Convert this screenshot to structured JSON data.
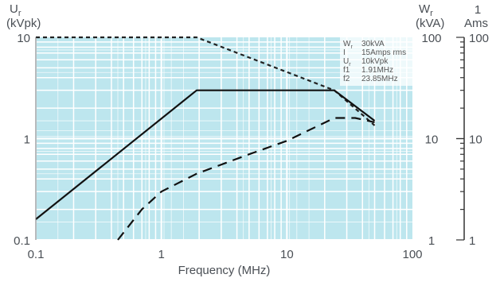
{
  "chart_data": {
    "type": "line",
    "xscale": "log",
    "yscale": "log",
    "xlim": [
      0.1,
      100
    ],
    "ylim": [
      0.1,
      10
    ],
    "grid": true,
    "background": "#bde6ee",
    "xlabel": "Frequency (MHz)",
    "axes": {
      "left": {
        "label_main": "U",
        "label_sub": "r",
        "label_unit": "(kVpk)",
        "ticks": [
          "0.1",
          "1",
          "10"
        ]
      },
      "right1": {
        "label_main": "W",
        "label_sub": "r",
        "label_unit": "(kVA)",
        "ticks": [
          "1",
          "10",
          "100"
        ]
      },
      "right2": {
        "label_main": "1",
        "label_unit": "Ams",
        "ticks": [
          "1",
          "10",
          "100"
        ]
      }
    },
    "x_ticks": [
      "0.1",
      "1",
      "10",
      "100"
    ],
    "legend": {
      "position": "top-right",
      "rows": [
        {
          "key": "W",
          "sub": "r",
          "value": "30kVA"
        },
        {
          "key": "I",
          "sub": "",
          "value": "15Amps rms"
        },
        {
          "key": "U",
          "sub": "r",
          "value": "10kVpk"
        },
        {
          "key": "f1",
          "sub": "",
          "value": "1.91MHz"
        },
        {
          "key": "f2",
          "sub": "",
          "value": "23.85MHz"
        }
      ]
    },
    "series": [
      {
        "style": "short-dash",
        "color": "#222222",
        "x": [
          0.1,
          1.91,
          23.85,
          50
        ],
        "y": [
          10,
          10,
          3.0,
          1.35
        ]
      },
      {
        "style": "solid",
        "color": "#111111",
        "x": [
          0.1,
          1.91,
          23.85,
          50
        ],
        "y": [
          0.16,
          3.0,
          3.0,
          1.5
        ]
      },
      {
        "style": "long-dash",
        "color": "#111111",
        "x": [
          0.45,
          0.7,
          1.0,
          1.91,
          5,
          10,
          23.85,
          35,
          50
        ],
        "y": [
          0.1,
          0.2,
          0.3,
          0.45,
          0.7,
          0.95,
          1.6,
          1.6,
          1.45
        ]
      }
    ]
  }
}
